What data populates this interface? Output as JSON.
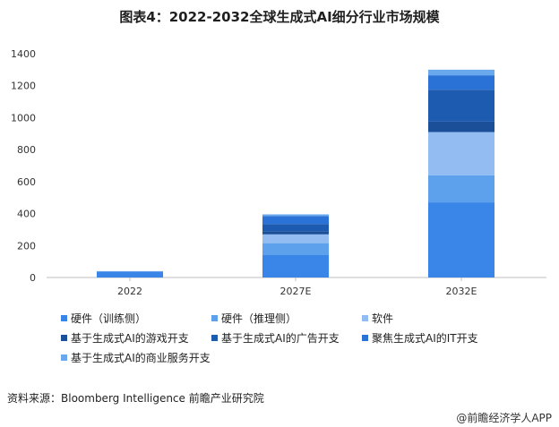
{
  "chart_data": {
    "type": "bar",
    "stacked": true,
    "title": "图表4：2022-2032全球生成式AI细分行业市场规模",
    "categories": [
      "2022",
      "2027E",
      "2032E"
    ],
    "ylim": [
      0,
      1400
    ],
    "yticks": [
      0,
      200,
      400,
      600,
      800,
      1000,
      1200,
      1400
    ],
    "grid": false,
    "legend_position": "bottom",
    "series": [
      {
        "name": "硬件（训练侧）",
        "color": "#3a86e8",
        "values": [
          37,
          140,
          470
        ]
      },
      {
        "name": "硬件（推理侧）",
        "color": "#5da0ec",
        "values": [
          2,
          75,
          170
        ]
      },
      {
        "name": "软件",
        "color": "#93bdf2",
        "values": [
          1,
          55,
          270
        ]
      },
      {
        "name": "基于生成式AI的游戏开支",
        "color": "#1b4f98",
        "values": [
          0,
          20,
          65
        ]
      },
      {
        "name": "基于生成式AI的广告开支",
        "color": "#1c5bb0",
        "values": [
          0,
          45,
          200
        ]
      },
      {
        "name": "聚焦生成式AI的IT开支",
        "color": "#2a72d6",
        "values": [
          0,
          50,
          90
        ]
      },
      {
        "name": "基于生成式AI的商业服务开支",
        "color": "#6aa8ee",
        "values": [
          0,
          10,
          35
        ]
      }
    ]
  },
  "source_note": "资料来源：Bloomberg Intelligence 前瞻产业研究院",
  "brand_note": "@前瞻经济学人APP"
}
